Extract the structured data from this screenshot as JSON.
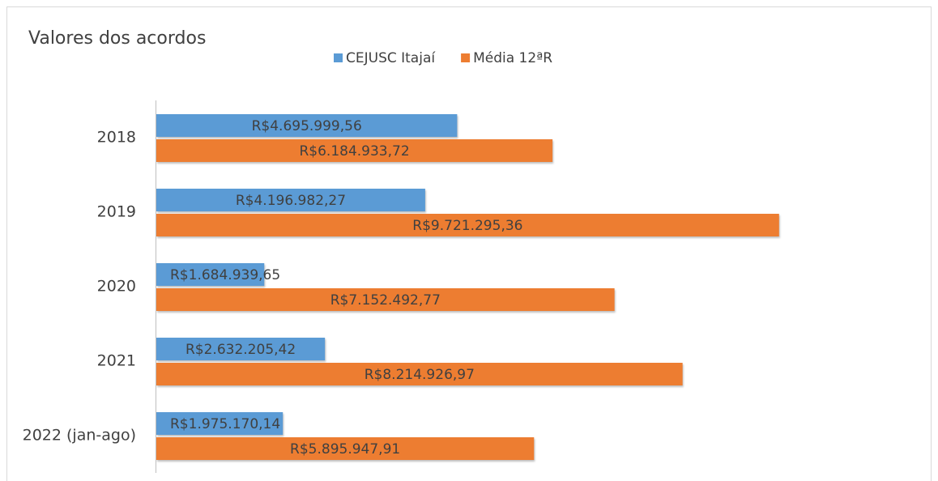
{
  "chart_data": {
    "type": "hbar",
    "title": "Valores dos acordos",
    "categories": [
      "2018",
      "2019",
      "2020",
      "2021",
      "2022 (jan-ago)"
    ],
    "series": [
      {
        "name": "CEJUSC Itajaí",
        "color": "#5b9bd5",
        "values": [
          4695999.56,
          4196982.27,
          1684939.65,
          2632205.42,
          1975170.14
        ],
        "value_labels": [
          "R$4.695.999,56",
          "R$4.196.982,27",
          "R$1.684.939,65",
          "R$2.632.205,42",
          "R$1.975.170,14"
        ]
      },
      {
        "name": "Média 12ªR",
        "color": "#ed7d31",
        "values": [
          6184933.72,
          9721295.36,
          7152492.77,
          8214926.97,
          5895947.91
        ],
        "value_labels": [
          "R$6.184.933,72",
          "R$9.721.295,36",
          "R$7.152.492,77",
          "R$8.214.926,97",
          "R$5.895.947,91"
        ]
      }
    ],
    "xlim": [
      0,
      12000000
    ],
    "legend": "top"
  }
}
